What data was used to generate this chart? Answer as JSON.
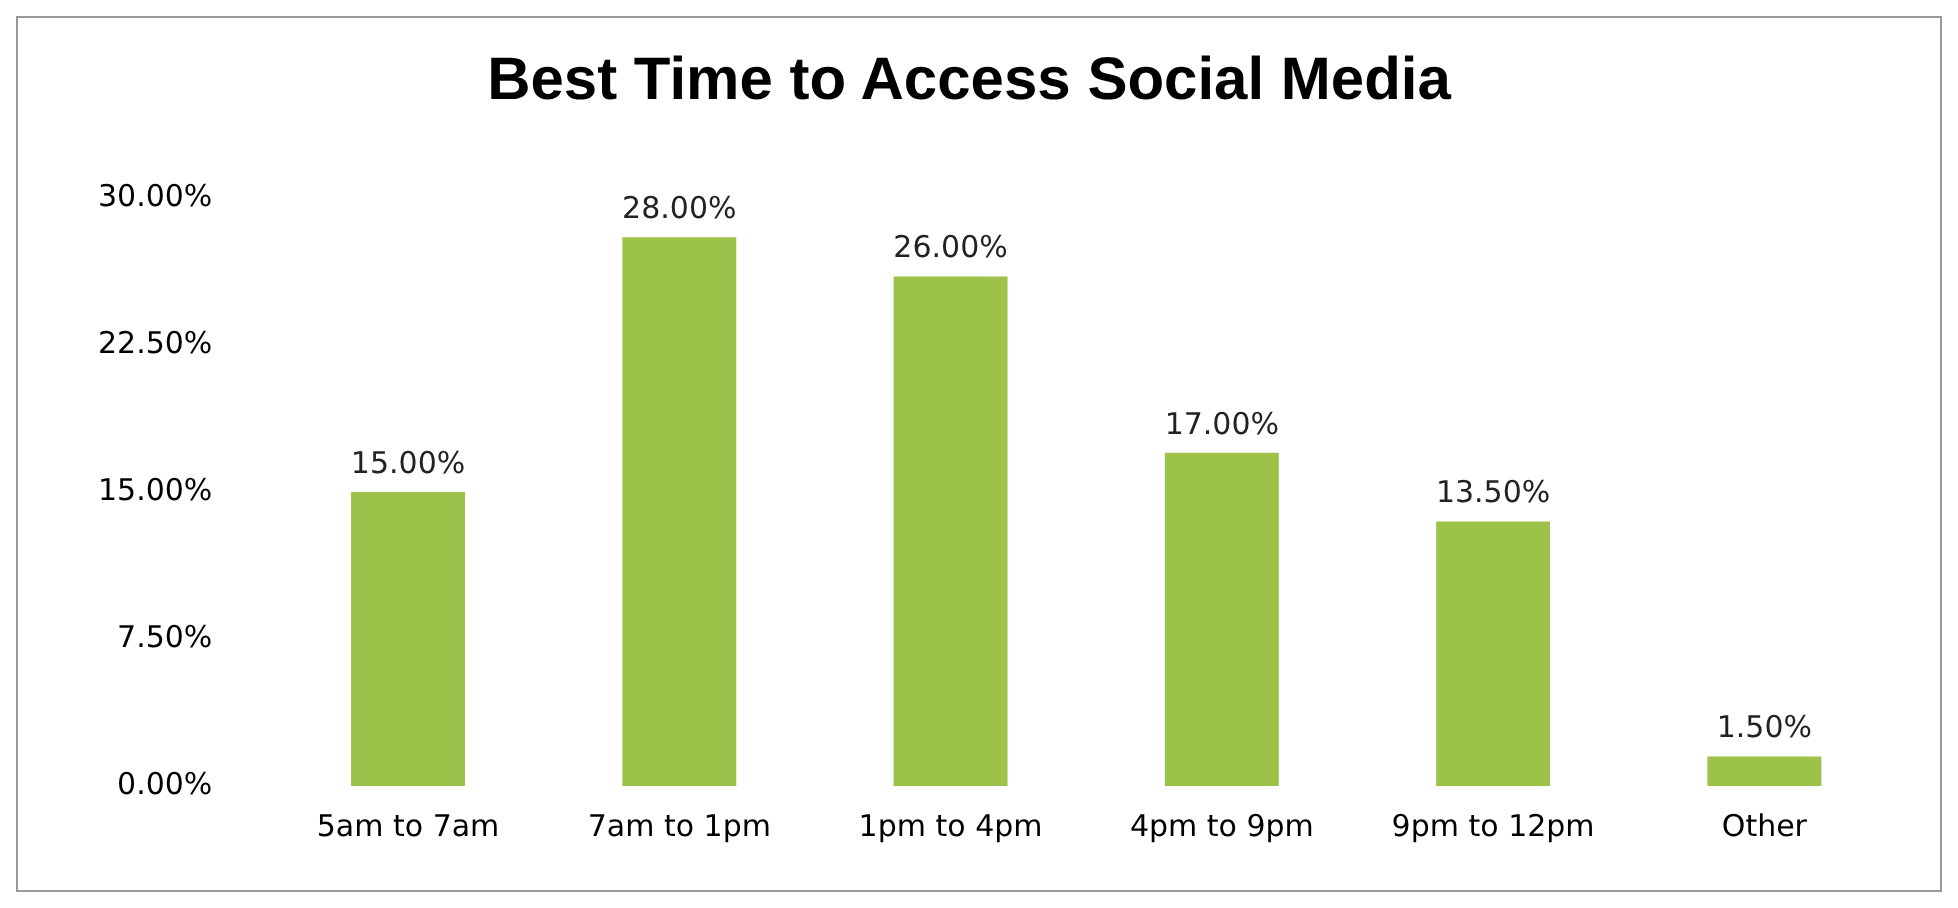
{
  "chart_data": {
    "type": "bar",
    "title": "Best Time to Access Social Media",
    "categories": [
      "5am to 7am",
      "7am to 1pm",
      "1pm to 4pm",
      "4pm to 9pm",
      "9pm to 12pm",
      "Other"
    ],
    "values": [
      15,
      28,
      26,
      17,
      13.5,
      1.5
    ],
    "value_labels": [
      "15.00%",
      "28.00%",
      "26.00%",
      "17.00%",
      "13.50%",
      "1.50%"
    ],
    "color": "#9dc24a",
    "ylim": [
      0,
      30
    ],
    "yticks": [
      {
        "value": 0,
        "label": "0.00%"
      },
      {
        "value": 7.5,
        "label": "7.50%"
      },
      {
        "value": 15,
        "label": "15.00%"
      },
      {
        "value": 22.5,
        "label": "22.50%"
      },
      {
        "value": 30,
        "label": "30.00%"
      }
    ],
    "grid": false,
    "legend": false
  }
}
